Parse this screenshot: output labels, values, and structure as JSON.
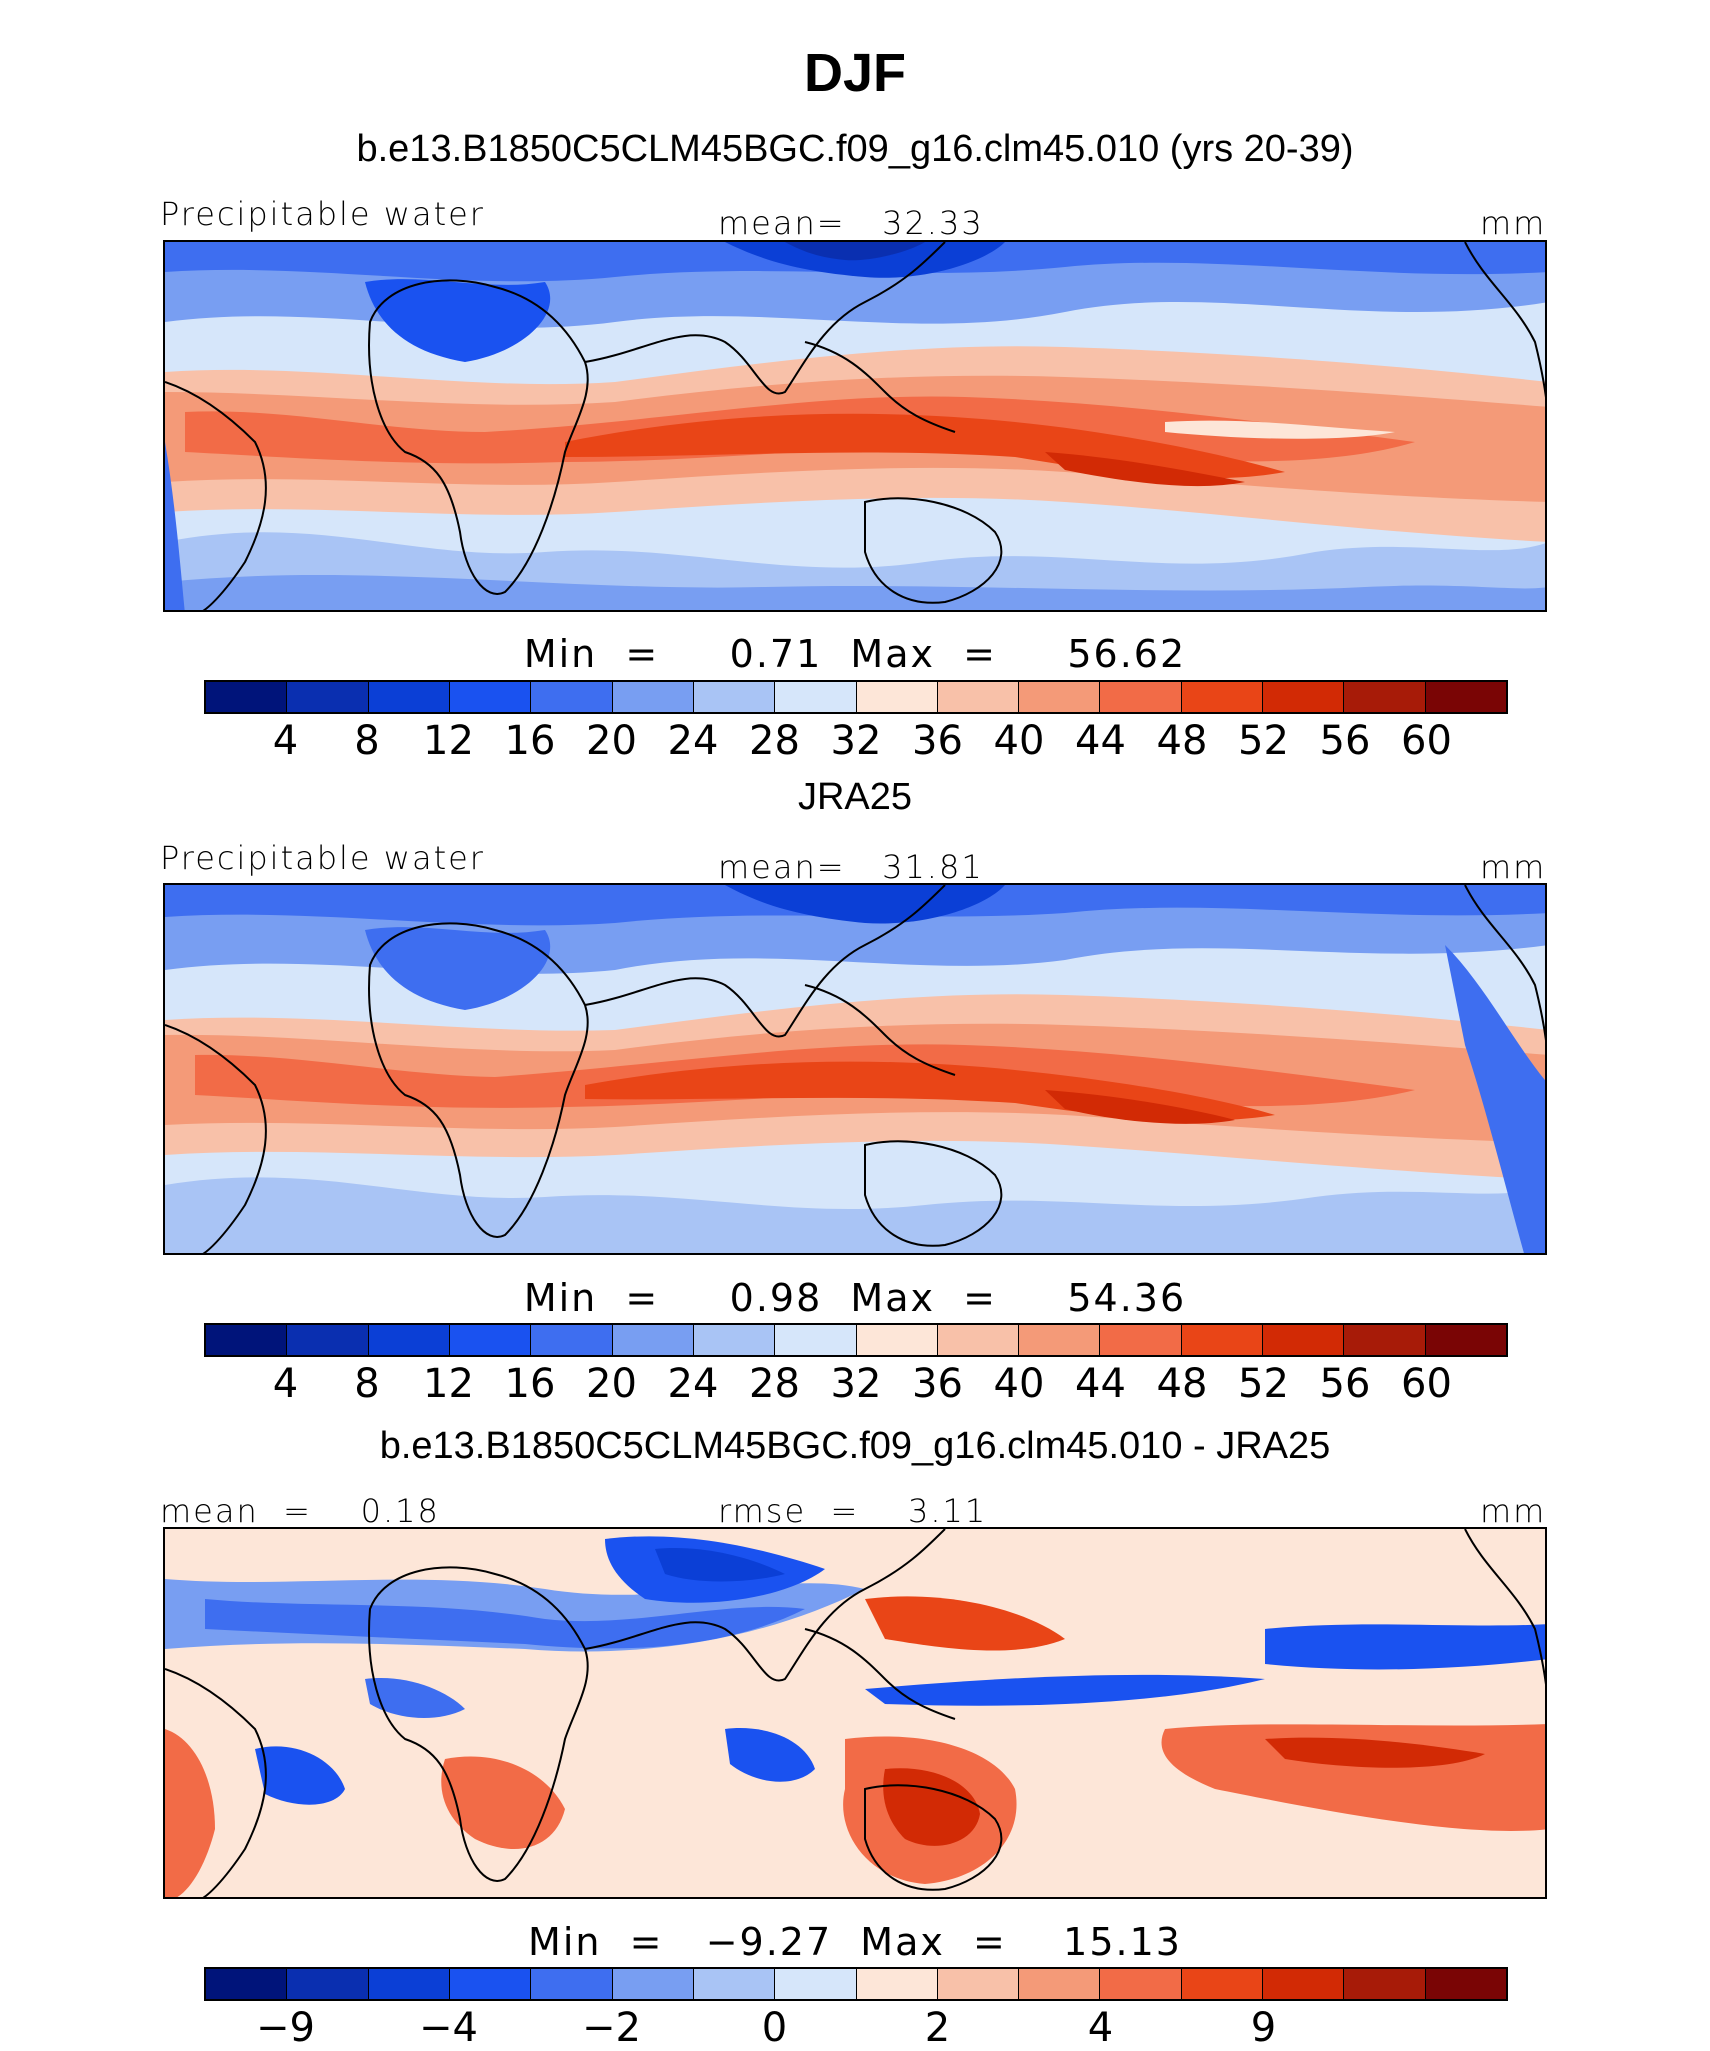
{
  "title": "DJF",
  "panels": [
    {
      "case_title": "b.e13.B1850C5CLM45BGC.f09_g16.clm45.010 (yrs 20-39)",
      "left_label": "Precipitable water",
      "center_label": "mean=   32.33",
      "right_label": "mm",
      "minmax": "Min  =     0.71  Max  =     56.62",
      "colorbar": {
        "colors": [
          "#00147a",
          "#0a2fb0",
          "#0b3fd6",
          "#1a52f0",
          "#3e6ef0",
          "#789ef2",
          "#a9c4f5",
          "#d6e6fa",
          "#fde6d8",
          "#f8c1a9",
          "#f49a78",
          "#f26b47",
          "#e94517",
          "#d22a05",
          "#a71b08",
          "#7a0505"
        ],
        "ticks": [
          "4",
          "8",
          "12",
          "16",
          "20",
          "24",
          "28",
          "32",
          "36",
          "40",
          "44",
          "48",
          "52",
          "56",
          "60"
        ]
      }
    },
    {
      "case_title": "JRA25",
      "left_label": "Precipitable water",
      "center_label": "mean=   31.81",
      "right_label": "mm",
      "minmax": "Min  =     0.98  Max  =     54.36",
      "colorbar": {
        "colors": [
          "#00147a",
          "#0a2fb0",
          "#0b3fd6",
          "#1a52f0",
          "#3e6ef0",
          "#789ef2",
          "#a9c4f5",
          "#d6e6fa",
          "#fde6d8",
          "#f8c1a9",
          "#f49a78",
          "#f26b47",
          "#e94517",
          "#d22a05",
          "#a71b08",
          "#7a0505"
        ],
        "ticks": [
          "4",
          "8",
          "12",
          "16",
          "20",
          "24",
          "28",
          "32",
          "36",
          "40",
          "44",
          "48",
          "52",
          "56",
          "60"
        ]
      }
    },
    {
      "case_title": "b.e13.B1850C5CLM45BGC.f09_g16.clm45.010 - JRA25",
      "left_label": "mean  =    0.18",
      "center_label": "rmse  =    3.11",
      "right_label": "mm",
      "minmax": "Min  =   −9.27  Max  =    15.13",
      "colorbar": {
        "colors": [
          "#00147a",
          "#0a2fb0",
          "#0b3fd6",
          "#1a52f0",
          "#3e6ef0",
          "#789ef2",
          "#a9c4f5",
          "#d6e6fa",
          "#fde6d8",
          "#f8c1a9",
          "#f49a78",
          "#f26b47",
          "#e94517",
          "#d22a05",
          "#a71b08",
          "#7a0505"
        ],
        "ticks": [
          "−9",
          "−4",
          "−2",
          "0",
          "2",
          "4",
          "9"
        ],
        "tick_slots": [
          1,
          3,
          5,
          7,
          9,
          11,
          13
        ]
      }
    }
  ]
}
